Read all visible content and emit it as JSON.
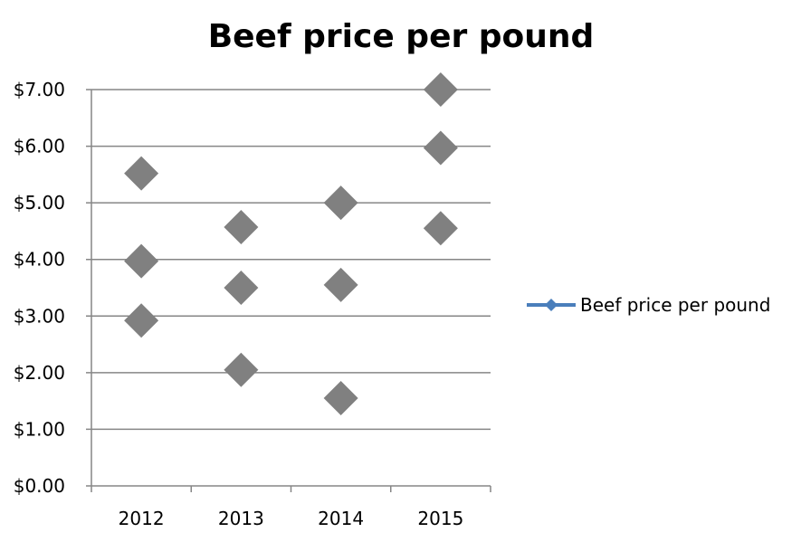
{
  "chart_data": {
    "type": "scatter",
    "title": "Beef price per pound",
    "xlabel": "",
    "ylabel": "",
    "categories": [
      "2012",
      "2013",
      "2014",
      "2015"
    ],
    "y_ticks": [
      "$0.00",
      "$1.00",
      "$2.00",
      "$3.00",
      "$4.00",
      "$5.00",
      "$6.00",
      "$7.00"
    ],
    "ylim": [
      0,
      7
    ],
    "grid": true,
    "legend_position": "right",
    "series": [
      {
        "name": "Beef price per pound",
        "points": [
          {
            "x": "2012",
            "y": 5.52
          },
          {
            "x": "2012",
            "y": 3.97
          },
          {
            "x": "2012",
            "y": 2.92
          },
          {
            "x": "2013",
            "y": 4.57
          },
          {
            "x": "2013",
            "y": 3.5
          },
          {
            "x": "2013",
            "y": 2.05
          },
          {
            "x": "2014",
            "y": 5.0
          },
          {
            "x": "2014",
            "y": 3.55
          },
          {
            "x": "2014",
            "y": 1.55
          },
          {
            "x": "2015",
            "y": 7.0
          },
          {
            "x": "2015",
            "y": 5.97
          },
          {
            "x": "2015",
            "y": 4.55
          }
        ],
        "marker_color": "#808080",
        "legend_color": "#4a7ebb"
      }
    ]
  }
}
